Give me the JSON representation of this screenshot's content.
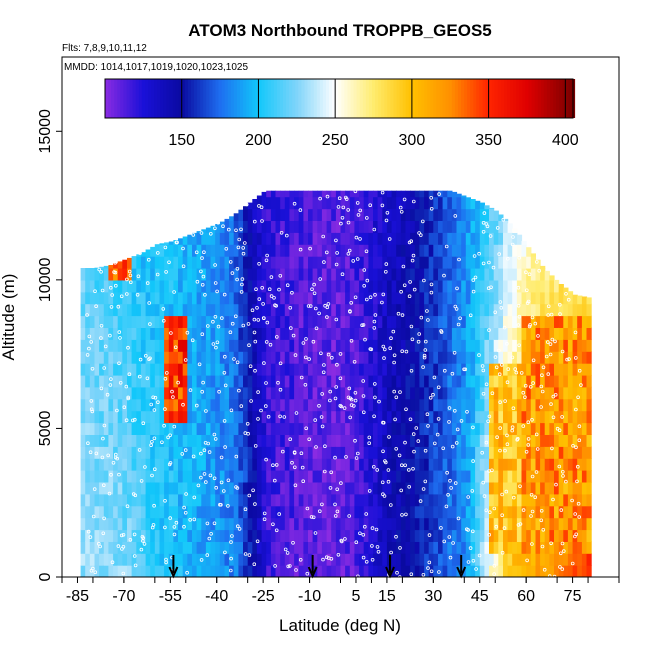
{
  "chart_data": {
    "type": "heatmap",
    "title": "ATOM3 Northbound TROPPB_GEOS5",
    "flights_label": "Flts: 7,8,9,10,11,12",
    "dates_label": "MMDD: 1014,1017,1019,1020,1023,1025",
    "xlabel": "Latitude (deg N)",
    "ylabel": "Altitude (m)",
    "xlim": [
      -90,
      90
    ],
    "ylim": [
      0,
      17500
    ],
    "x_ticks": [
      -85,
      -70,
      -55,
      -40,
      -25,
      -10,
      5,
      15,
      30,
      45,
      60,
      75
    ],
    "x_tick_labels": [
      "-85",
      "-70",
      "-55",
      "-40",
      "-25",
      "-10",
      "5",
      "15",
      "30",
      "45",
      "60",
      "75"
    ],
    "y_ticks": [
      0,
      5000,
      10000,
      15000
    ],
    "y_tick_labels": [
      "0",
      "5000",
      "10000",
      "15000"
    ],
    "colorbar": {
      "min": 100,
      "max": 405,
      "ticks": [
        150,
        200,
        250,
        300,
        350,
        400
      ],
      "tick_labels": [
        "150",
        "200",
        "250",
        "300",
        "350",
        "400"
      ],
      "stops": [
        {
          "v": 100,
          "c": "#8a2be2"
        },
        {
          "v": 125,
          "c": "#1a10d8"
        },
        {
          "v": 150,
          "c": "#0a0aa0"
        },
        {
          "v": 175,
          "c": "#1e6ef0"
        },
        {
          "v": 200,
          "c": "#12c8fa"
        },
        {
          "v": 225,
          "c": "#7fd4fa"
        },
        {
          "v": 250,
          "c": "#ffffff"
        },
        {
          "v": 275,
          "c": "#ffec6e"
        },
        {
          "v": 300,
          "c": "#ffc000"
        },
        {
          "v": 325,
          "c": "#ff9000"
        },
        {
          "v": 350,
          "c": "#ff2400"
        },
        {
          "v": 375,
          "c": "#e00000"
        },
        {
          "v": 405,
          "c": "#7a0000"
        }
      ]
    },
    "arrow_latitudes": [
      -54,
      -9,
      16,
      39
    ],
    "profile": {
      "lat": [
        -85,
        -80,
        -75,
        -70,
        -65,
        -60,
        -55,
        -50,
        -45,
        -40,
        -35,
        -30,
        -25,
        -20,
        -15,
        -10,
        -5,
        0,
        5,
        10,
        15,
        20,
        25,
        30,
        35,
        40,
        45,
        50,
        55,
        60,
        65,
        70,
        75,
        80
      ],
      "top_alt": [
        10400,
        10400,
        10500,
        10700,
        10900,
        11200,
        11300,
        11500,
        11700,
        11900,
        12200,
        12600,
        13000,
        13000,
        13000,
        13000,
        13000,
        13000,
        13000,
        13000,
        13000,
        13000,
        13000,
        13000,
        13000,
        12800,
        12600,
        12300,
        11800,
        11100,
        10400,
        9900,
        9500,
        9400
      ],
      "surface_value": [
        230,
        230,
        228,
        225,
        215,
        205,
        200,
        195,
        190,
        185,
        180,
        160,
        120,
        115,
        112,
        110,
        108,
        110,
        115,
        130,
        140,
        150,
        155,
        165,
        175,
        185,
        230,
        270,
        300,
        310,
        320,
        330,
        340,
        350
      ],
      "top_value": [
        220,
        215,
        212,
        205,
        200,
        200,
        198,
        195,
        190,
        185,
        175,
        140,
        120,
        118,
        115,
        112,
        110,
        112,
        115,
        125,
        135,
        140,
        150,
        160,
        175,
        185,
        200,
        220,
        240,
        260,
        270,
        275,
        280,
        285
      ]
    },
    "anomalies": [
      {
        "lat_range": [
          -57,
          -51
        ],
        "alt_range": [
          5000,
          8500
        ],
        "value": 350
      },
      {
        "lat_range": [
          -75,
          -69
        ],
        "alt_range": [
          10000,
          10500
        ],
        "value": 340
      },
      {
        "lat_range": [
          48,
          58
        ],
        "alt_range": [
          500,
          7000
        ],
        "value": 300
      },
      {
        "lat_range": [
          58,
          80
        ],
        "alt_range": [
          500,
          8500
        ],
        "value": 320
      }
    ]
  }
}
